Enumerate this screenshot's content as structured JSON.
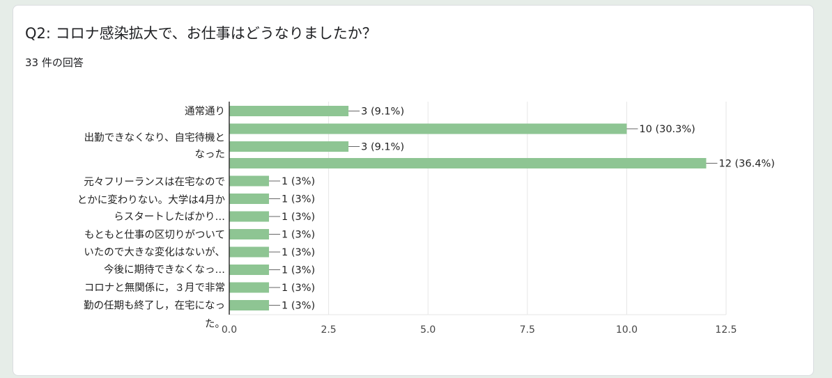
{
  "question": {
    "title": "Q2: コロナ感染拡大で、お仕事はどうなりましたか？",
    "response_count": "33 件の回答"
  },
  "colors": {
    "bar": "#8ec593",
    "grid": "#e6e6e6",
    "axis": "#333333"
  },
  "chart_data": {
    "type": "bar",
    "orientation": "horizontal",
    "title": "",
    "xlabel": "",
    "ylabel": "",
    "xlim": [
      0,
      12.5
    ],
    "x_ticks": [
      "0.0",
      "2.5",
      "5.0",
      "7.5",
      "10.0",
      "12.5"
    ],
    "x_tick_values": [
      0,
      2.5,
      5,
      7.5,
      10,
      12.5
    ],
    "grid": true,
    "legend": "none",
    "category_label_lines": [
      "通常通り",
      "出勤できなくなり、自宅待機と",
      "なった",
      "元々フリーランスは在宅なので",
      "とかに変わりない。大学は4月か",
      "らスタートしたばかり…",
      "もともと仕事の区切りがついて",
      "いたので大きな変化はないが、",
      "今後に期待できなくなっ…",
      "コロナと無関係に，３月で非常",
      "勤の任期も終了し，在宅になっ",
      "た。"
    ],
    "values": [
      3,
      10,
      3,
      12,
      1,
      1,
      1,
      1,
      1,
      1,
      1,
      1
    ],
    "data_labels": [
      "3 (9.1%)",
      "10 (30.3%)",
      "3 (9.1%)",
      "12 (36.4%)",
      "1 (3%)",
      "1 (3%)",
      "1 (3%)",
      "1 (3%)",
      "1 (3%)",
      "1 (3%)",
      "1 (3%)",
      "1 (3%)"
    ]
  }
}
